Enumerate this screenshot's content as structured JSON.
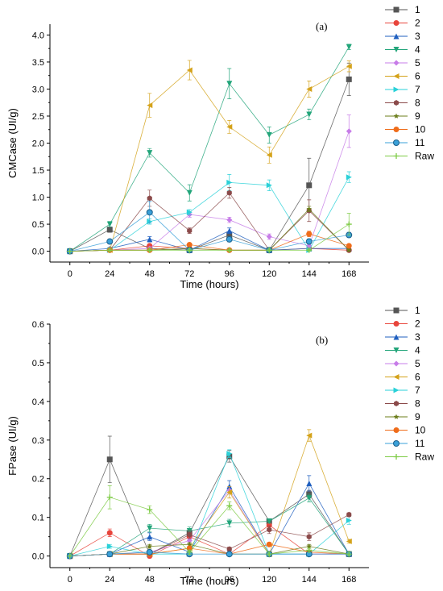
{
  "chart_data": [
    {
      "type": "line",
      "panel_label": "(a)",
      "xlabel": "Time (hours)",
      "ylabel": "CMCase (UI/g)",
      "x": [
        0,
        24,
        48,
        72,
        96,
        120,
        144,
        168
      ],
      "xlim": [
        -12,
        180
      ],
      "ylim": [
        -0.2,
        4.2
      ],
      "yticks": [
        0.0,
        0.5,
        1.0,
        1.5,
        2.0,
        2.5,
        3.0,
        3.5,
        4.0
      ],
      "ytick_labels": [
        "0.0",
        "0.5",
        "1.0",
        "1.5",
        "2.0",
        "2.5",
        "3.0",
        "3.5",
        "4.0"
      ],
      "grid": false,
      "legend_position": "right",
      "series": [
        {
          "name": "1",
          "values": [
            0,
            0.4,
            0.05,
            0.02,
            0.3,
            0.02,
            1.22,
            3.18
          ],
          "errors": [
            0,
            0.05,
            0.03,
            0.02,
            0.05,
            0.02,
            0.5,
            0.3
          ]
        },
        {
          "name": "2",
          "values": [
            0,
            0.02,
            0.1,
            0.05,
            0.02,
            0.02,
            0.05,
            0.02
          ],
          "errors": [
            0,
            0.02,
            0.03,
            0.02,
            0.02,
            0.02,
            0.03,
            0.02
          ]
        },
        {
          "name": "3",
          "values": [
            0,
            0.05,
            0.22,
            0.02,
            0.38,
            0.02,
            0.05,
            0.05
          ],
          "errors": [
            0,
            0.02,
            0.05,
            0.02,
            0.05,
            0.02,
            0.03,
            0.03
          ]
        },
        {
          "name": "4",
          "values": [
            0,
            0.5,
            1.82,
            1.08,
            3.1,
            2.15,
            2.53,
            3.78
          ],
          "errors": [
            0,
            0.05,
            0.08,
            0.15,
            0.28,
            0.15,
            0.1,
            0.05
          ]
        },
        {
          "name": "5",
          "values": [
            0,
            0.02,
            0.05,
            0.68,
            0.58,
            0.27,
            0.1,
            2.22
          ],
          "errors": [
            0,
            0.02,
            0.03,
            0.05,
            0.05,
            0.05,
            0.05,
            0.3
          ]
        },
        {
          "name": "6",
          "values": [
            0,
            0.02,
            2.7,
            3.35,
            2.3,
            1.78,
            3.0,
            3.42
          ],
          "errors": [
            0,
            0.02,
            0.22,
            0.18,
            0.12,
            0.15,
            0.15,
            0.1
          ]
        },
        {
          "name": "7",
          "values": [
            0,
            0.02,
            0.55,
            0.72,
            1.27,
            1.22,
            0.02,
            1.37
          ],
          "errors": [
            0,
            0.02,
            0.05,
            0.05,
            0.15,
            0.1,
            0.02,
            0.1
          ]
        },
        {
          "name": "8",
          "values": [
            0,
            0.02,
            0.98,
            0.38,
            1.08,
            0.02,
            0.75,
            0.02
          ],
          "errors": [
            0,
            0.02,
            0.15,
            0.05,
            0.1,
            0.02,
            0.2,
            0.02
          ]
        },
        {
          "name": "9",
          "values": [
            0,
            0.02,
            0.02,
            0.05,
            0.02,
            0.02,
            0.78,
            0.02
          ],
          "errors": [
            0,
            0.02,
            0.02,
            0.02,
            0.02,
            0.02,
            0.05,
            0.02
          ]
        },
        {
          "name": "10",
          "values": [
            0,
            0.02,
            0.02,
            0.12,
            0.02,
            0.02,
            0.32,
            0.1
          ],
          "errors": [
            0,
            0.02,
            0.02,
            0.03,
            0.02,
            0.02,
            0.05,
            0.03
          ]
        },
        {
          "name": "11",
          "values": [
            0,
            0.18,
            0.72,
            0.02,
            0.22,
            0.02,
            0.18,
            0.3
          ],
          "errors": [
            0,
            0.03,
            0.2,
            0.02,
            0.05,
            0.02,
            0.05,
            0.05
          ]
        },
        {
          "name": "Raw",
          "values": [
            0,
            0.02,
            0.02,
            0.02,
            0.02,
            0.02,
            0.02,
            0.5
          ],
          "errors": [
            0,
            0.02,
            0.02,
            0.02,
            0.02,
            0.02,
            0.02,
            0.2
          ]
        }
      ]
    },
    {
      "type": "line",
      "panel_label": "(b)",
      "xlabel": "Time (hours)",
      "ylabel": "FPase (UI/g)",
      "x": [
        0,
        24,
        48,
        72,
        96,
        120,
        144,
        168
      ],
      "xlim": [
        -12,
        180
      ],
      "ylim": [
        -0.03,
        0.6
      ],
      "yticks": [
        0.0,
        0.1,
        0.2,
        0.3,
        0.4,
        0.5,
        0.6
      ],
      "ytick_labels": [
        "0.0",
        "0.1",
        "0.2",
        "0.3",
        "0.4",
        "0.5",
        "0.6"
      ],
      "grid": false,
      "legend_position": "right",
      "series": [
        {
          "name": "1",
          "values": [
            0,
            0.25,
            0.005,
            0.06,
            0.258,
            0.09,
            0.16,
            0.005
          ],
          "errors": [
            0,
            0.06,
            0.005,
            0.01,
            0.015,
            0.005,
            0.01,
            0.005
          ]
        },
        {
          "name": "2",
          "values": [
            0,
            0.06,
            0.0,
            0.05,
            0.005,
            0.08,
            0.005,
            0.005
          ],
          "errors": [
            0,
            0.01,
            0.005,
            0.01,
            0.005,
            0.005,
            0.005,
            0.005
          ]
        },
        {
          "name": "3",
          "values": [
            0,
            0.005,
            0.05,
            0.01,
            0.18,
            0.005,
            0.188,
            0.005
          ],
          "errors": [
            0,
            0.005,
            0.01,
            0.005,
            0.015,
            0.005,
            0.02,
            0.005
          ]
        },
        {
          "name": "4",
          "values": [
            0,
            0.005,
            0.072,
            0.065,
            0.085,
            0.09,
            0.15,
            0.005
          ],
          "errors": [
            0,
            0.005,
            0.01,
            0.01,
            0.01,
            0.005,
            0.01,
            0.005
          ]
        },
        {
          "name": "5",
          "values": [
            0,
            0.005,
            0.01,
            0.04,
            0.17,
            0.005,
            0.005,
            0.005
          ],
          "errors": [
            0,
            0.005,
            0.005,
            0.005,
            0.01,
            0.005,
            0.005,
            0.005
          ]
        },
        {
          "name": "6",
          "values": [
            0,
            0.005,
            0.005,
            0.02,
            0.165,
            0.005,
            0.312,
            0.038
          ],
          "errors": [
            0,
            0.005,
            0.005,
            0.005,
            0.015,
            0.005,
            0.015,
            0.005
          ]
        },
        {
          "name": "7",
          "values": [
            0,
            0.025,
            0.005,
            0.005,
            0.265,
            0.005,
            0.005,
            0.092
          ],
          "errors": [
            0,
            0.005,
            0.005,
            0.005,
            0.01,
            0.005,
            0.005,
            0.01
          ]
        },
        {
          "name": "8",
          "values": [
            0,
            0.005,
            0.005,
            0.055,
            0.018,
            0.068,
            0.05,
            0.107
          ],
          "errors": [
            0,
            0.005,
            0.005,
            0.01,
            0.005,
            0.01,
            0.01,
            0.005
          ]
        },
        {
          "name": "9",
          "values": [
            0,
            0.005,
            0.025,
            0.03,
            0.005,
            0.005,
            0.025,
            0.005
          ],
          "errors": [
            0,
            0.005,
            0.005,
            0.005,
            0.005,
            0.005,
            0.005,
            0.005
          ]
        },
        {
          "name": "10",
          "values": [
            0,
            0.005,
            0.005,
            0.02,
            0.005,
            0.03,
            0.01,
            0.005
          ],
          "errors": [
            0,
            0.005,
            0.005,
            0.005,
            0.005,
            0.005,
            0.005,
            0.005
          ]
        },
        {
          "name": "11",
          "values": [
            0,
            0.005,
            0.01,
            0.005,
            0.005,
            0.005,
            0.005,
            0.005
          ],
          "errors": [
            0,
            0.005,
            0.005,
            0.005,
            0.005,
            0.005,
            0.005,
            0.005
          ]
        },
        {
          "name": "Raw",
          "values": [
            0,
            0.152,
            0.12,
            0.01,
            0.13,
            0.005,
            0.015,
            0.005
          ],
          "errors": [
            0,
            0.03,
            0.01,
            0.005,
            0.01,
            0.005,
            0.005,
            0.005
          ]
        }
      ]
    }
  ],
  "series_style": [
    {
      "name": "1",
      "color": "#555555",
      "marker": "square"
    },
    {
      "name": "2",
      "color": "#e8453c",
      "marker": "circle"
    },
    {
      "name": "3",
      "color": "#1f5fbf",
      "marker": "triangle-up"
    },
    {
      "name": "4",
      "color": "#22a57a",
      "marker": "triangle-down"
    },
    {
      "name": "5",
      "color": "#c77ce8",
      "marker": "diamond"
    },
    {
      "name": "6",
      "color": "#d4a21a",
      "marker": "triangle-left"
    },
    {
      "name": "7",
      "color": "#2ad1d8",
      "marker": "triangle-right"
    },
    {
      "name": "8",
      "color": "#8b4a4a",
      "marker": "hexagon"
    },
    {
      "name": "9",
      "color": "#6b7d1a",
      "marker": "star"
    },
    {
      "name": "10",
      "color": "#ef6c1a",
      "marker": "circle"
    },
    {
      "name": "11",
      "color": "#3aa0d8",
      "marker": "ringed-circle"
    },
    {
      "name": "Raw",
      "color": "#7ecb45",
      "marker": "plus"
    }
  ]
}
